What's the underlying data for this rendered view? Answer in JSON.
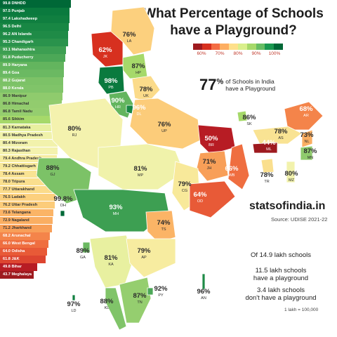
{
  "title": {
    "line1": "What Percentage of Schools",
    "line2": "have a Playground?"
  },
  "legend": {
    "colors": [
      "#9e1a1f",
      "#d7301f",
      "#f46d43",
      "#fdae61",
      "#fee08b",
      "#d9ef8b",
      "#a6d96a",
      "#66bd63",
      "#1a9850",
      "#006837"
    ],
    "ticks": [
      "60%",
      "70%",
      "80%",
      "90%",
      "100%"
    ]
  },
  "ranking": [
    {
      "label": "99.8 DNHDD",
      "value": 99.8,
      "color": "#006837"
    },
    {
      "label": "97.5 Punjab",
      "value": 97.5,
      "color": "#0a7a3e"
    },
    {
      "label": "97.4 Lakshadweep",
      "value": 97.4,
      "color": "#107f40"
    },
    {
      "label": "96.5 Delhi",
      "value": 96.5,
      "color": "#188744"
    },
    {
      "label": "96.2 AN Islands",
      "value": 96.2,
      "color": "#1f8b47"
    },
    {
      "label": "95.3 Chandigarh",
      "value": 95.3,
      "color": "#2a934c"
    },
    {
      "label": "93.1 Maharashtra",
      "value": 93.1,
      "color": "#3d9f52"
    },
    {
      "label": "91.8 Puducherry",
      "value": 91.8,
      "color": "#4ca857"
    },
    {
      "label": "89.9 Haryana",
      "value": 89.9,
      "color": "#63b55e"
    },
    {
      "label": "89.4 Goa",
      "value": 89.4,
      "color": "#6bb962"
    },
    {
      "label": "88.2 Gujarat",
      "value": 88.2,
      "color": "#7cc267"
    },
    {
      "label": "88.0 Kerala",
      "value": 88.0,
      "color": "#80c469"
    },
    {
      "label": "86.9 Manipur",
      "value": 86.9,
      "color": "#8fcb6d"
    },
    {
      "label": "86.8 Himachal",
      "value": 86.8,
      "color": "#92cc6e"
    },
    {
      "label": "86.8 Tamil Nadu",
      "value": 86.8,
      "color": "#95ce6f"
    },
    {
      "label": "85.6 Sikkim",
      "value": 85.6,
      "color": "#a6d96a"
    },
    {
      "label": "81.3 Karnataka",
      "value": 81.3,
      "color": "#e8f0a0"
    },
    {
      "label": "80.5 Madhya Pradesh",
      "value": 80.5,
      "color": "#f0f2aa"
    },
    {
      "label": "80.4 Mizoram",
      "value": 80.4,
      "color": "#f2f2ac"
    },
    {
      "label": "80.3 Rajasthan",
      "value": 80.3,
      "color": "#f4f2ae"
    },
    {
      "label": "79.4 Andhra Pradesh",
      "value": 79.4,
      "color": "#f7eca0"
    },
    {
      "label": "79.2 Chhattisgarh",
      "value": 79.2,
      "color": "#f8e99a"
    },
    {
      "label": "78.4 Assam",
      "value": 78.4,
      "color": "#f9e393"
    },
    {
      "label": "78.0 Tripura",
      "value": 78.0,
      "color": "#fadf8e"
    },
    {
      "label": "77.7 Uttarakhand",
      "value": 77.7,
      "color": "#fbdb8a"
    },
    {
      "label": "76.5 Ladakh",
      "value": 76.5,
      "color": "#fcd07e"
    },
    {
      "label": "76.2 Uttar Pradesh",
      "value": 76.2,
      "color": "#fccc7a"
    },
    {
      "label": "73.6 Telangana",
      "value": 73.6,
      "color": "#fbb466"
    },
    {
      "label": "72.9 Nagaland",
      "value": 72.9,
      "color": "#faae62"
    },
    {
      "label": "71.2 Jharkhand",
      "value": 71.2,
      "color": "#f89f58"
    },
    {
      "label": "68.2 Arunachal",
      "value": 68.2,
      "color": "#f4844a"
    },
    {
      "label": "66.0 West Bengal",
      "value": 66.0,
      "color": "#ef6e40"
    },
    {
      "label": "64.0 Odisha",
      "value": 64.0,
      "color": "#e85a37"
    },
    {
      "label": "61.8 J&K",
      "value": 61.8,
      "color": "#dd4530"
    },
    {
      "label": "49.8 Bihar",
      "value": 49.8,
      "color": "#b71c24"
    },
    {
      "label": "43.7 Meghalaya",
      "value": 43.7,
      "color": "#9e1a1f"
    }
  ],
  "map_labels": [
    {
      "pct": "76%",
      "code": "LA"
    },
    {
      "pct": "62%",
      "code": "JK"
    },
    {
      "pct": "87%",
      "code": "HP"
    },
    {
      "pct": "98%",
      "code": "PB"
    },
    {
      "pct": "78%",
      "code": "UK"
    },
    {
      "pct": "90%",
      "code": "HR"
    },
    {
      "pct": "96%",
      "code": "DL"
    },
    {
      "pct": "80%",
      "code": "RJ"
    },
    {
      "pct": "76%",
      "code": "UP"
    },
    {
      "pct": "50%",
      "code": "BR"
    },
    {
      "pct": "86%",
      "code": "SK"
    },
    {
      "pct": "68%",
      "code": "AR"
    },
    {
      "pct": "78%",
      "code": "AS"
    },
    {
      "pct": "73%",
      "code": "NL"
    },
    {
      "pct": "44%",
      "code": "ML"
    },
    {
      "pct": "87%",
      "code": "MN"
    },
    {
      "pct": "78%",
      "code": "TR"
    },
    {
      "pct": "80%",
      "code": "MZ"
    },
    {
      "pct": "88%",
      "code": "GJ"
    },
    {
      "pct": "81%",
      "code": "MP"
    },
    {
      "pct": "71%",
      "code": "JH"
    },
    {
      "pct": "66%",
      "code": "WB"
    },
    {
      "pct": "79%",
      "code": "CG"
    },
    {
      "pct": "64%",
      "code": "OD"
    },
    {
      "pct": "99.8%",
      "code": "DH"
    },
    {
      "pct": "93%",
      "code": "MH"
    },
    {
      "pct": "74%",
      "code": "TS"
    },
    {
      "pct": "89%",
      "code": "GA"
    },
    {
      "pct": "81%",
      "code": "KA"
    },
    {
      "pct": "79%",
      "code": "AP"
    },
    {
      "pct": "92%",
      "code": "PY"
    },
    {
      "pct": "88%",
      "code": "KL"
    },
    {
      "pct": "87%",
      "code": "TN"
    },
    {
      "pct": "96%",
      "code": "AN"
    },
    {
      "pct": "97%",
      "code": "LD"
    }
  ],
  "headline": {
    "value": "77",
    "unit": "%",
    "text_line1": "of Schools in India",
    "text_line2": "have a Playground"
  },
  "brand": "statsofindia.in",
  "source": "Source: UDISE 2021-22",
  "stats": {
    "total": "Of 14.9 lakh schools",
    "with_line1": "11.5 lakh schools",
    "with_line2": "have a playground",
    "without_line1": "3.4 lakh schools",
    "without_line2": "don't have a playground"
  },
  "note": "1 lakh = 100,000"
}
